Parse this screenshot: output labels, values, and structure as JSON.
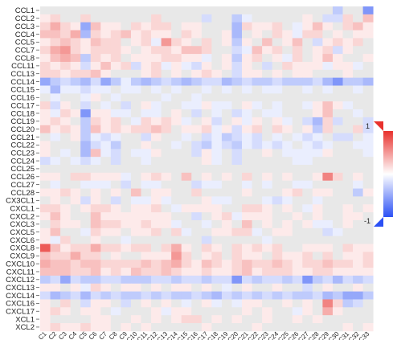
{
  "chart_data": {
    "type": "heatmap",
    "title": "",
    "xlabel": "",
    "ylabel": "",
    "rows": [
      "CCL1",
      "CCL2",
      "CCL3",
      "CCL4",
      "CCL5",
      "CCL7",
      "CCL8",
      "CCL11",
      "CCL13",
      "CCL14",
      "CCL15",
      "CCL16",
      "CCL17",
      "CCL18",
      "CCL19",
      "CCL20",
      "CCL21",
      "CCL22",
      "CCL23",
      "CCL24",
      "CCL25",
      "CCL26",
      "CCL27",
      "CCL28",
      "CX3CL1",
      "CXCL1",
      "CXCL2",
      "CXCL3",
      "CXCL5",
      "CXCL6",
      "CXCL8",
      "CXCL9",
      "CXCL10",
      "CXCL11",
      "CXCL12",
      "CXCL13",
      "CXCL14",
      "CXCL16",
      "CXCL17",
      "XCL1",
      "XCL2"
    ],
    "columns": [
      "C1",
      "C2",
      "C3",
      "C4",
      "C5",
      "C6",
      "C7",
      "C8",
      "C9",
      "C10",
      "C11",
      "C12",
      "C13",
      "C14",
      "C15",
      "C16",
      "C17",
      "C18",
      "C19",
      "C20",
      "C21",
      "C22",
      "C23",
      "C24",
      "C25",
      "C26",
      "C27",
      "C28",
      "C29",
      "C30",
      "C31",
      "C32",
      "C33"
    ],
    "values": [
      [
        0,
        0,
        0,
        0,
        0,
        0,
        0,
        0,
        0,
        0,
        0,
        0,
        0,
        0,
        0,
        0,
        0,
        0,
        0,
        0,
        0,
        0,
        0,
        0,
        0,
        0,
        0,
        0,
        0,
        -0.3,
        0,
        0,
        -0.6
      ],
      [
        0.1,
        0.2,
        0,
        0,
        0.2,
        0,
        0,
        0,
        0,
        0,
        0,
        0.2,
        0,
        0,
        0,
        0,
        -0.2,
        0,
        0,
        -0.3,
        -0.1,
        0,
        0,
        0,
        0,
        0,
        0.1,
        0,
        -0.2,
        -0.2,
        0.2,
        0,
        0.3
      ],
      [
        0.2,
        0.4,
        0.2,
        0.1,
        -0.5,
        0.3,
        0.1,
        0.1,
        0,
        0.2,
        0.1,
        0.2,
        0.2,
        0,
        0.1,
        0.1,
        0,
        0,
        0,
        -0.4,
        0.2,
        0.1,
        0.1,
        0.2,
        0,
        -0.1,
        0.1,
        0.3,
        0.1,
        0,
        0.2,
        0.3,
        0.1
      ],
      [
        0.3,
        0.3,
        0.2,
        0.4,
        -0.4,
        0.2,
        0.1,
        0.2,
        0.3,
        0.1,
        0.2,
        0.1,
        0.1,
        0,
        0.2,
        0.1,
        0,
        0,
        0.1,
        -0.4,
        0,
        0.1,
        0,
        0.2,
        0.1,
        -0.1,
        0.2,
        0.2,
        0,
        0.1,
        0,
        0.1,
        0.1
      ],
      [
        0.1,
        0.2,
        0.3,
        0.2,
        0.1,
        0.3,
        0.2,
        0.2,
        0,
        0.1,
        0.2,
        -0.1,
        0.5,
        0.2,
        0.1,
        0,
        0.2,
        0,
        0.1,
        -0.3,
        0.1,
        0,
        0.3,
        0,
        0.1,
        0.3,
        0,
        -0.2,
        0.1,
        0.2,
        0.1,
        0.2,
        0
      ],
      [
        0.2,
        0.4,
        0.5,
        0.2,
        0.1,
        0.2,
        0.2,
        0.2,
        0.1,
        0,
        0.1,
        0.2,
        0.2,
        0.1,
        0.3,
        0.3,
        0.2,
        0,
        0,
        -0.2,
        -0.1,
        0.3,
        0.1,
        0.2,
        0,
        0.2,
        0,
        0.1,
        0.2,
        -0.2,
        0.1,
        0,
        0
      ],
      [
        0.1,
        0.3,
        0.4,
        0.3,
        -0.3,
        0.2,
        0.1,
        0.2,
        0,
        0.1,
        0.1,
        0.1,
        0.2,
        0.2,
        0.1,
        0.1,
        -0.1,
        0,
        0.1,
        -0.3,
        0.1,
        0.2,
        0,
        0.1,
        -0.1,
        0.2,
        0,
        0.1,
        0.3,
        0.1,
        0,
        0,
        0.1
      ],
      [
        0.2,
        0.1,
        0.2,
        0.1,
        -0.2,
        0.1,
        0.3,
        0.1,
        0.2,
        -0.2,
        0.1,
        0.2,
        -0.1,
        0.1,
        -0.1,
        -0.2,
        0.1,
        0,
        0.1,
        -0.2,
        0.1,
        0,
        -0.2,
        0,
        0.2,
        0.1,
        0.1,
        0.1,
        -0.1,
        0.1,
        0.1,
        -0.1,
        0
      ],
      [
        0.2,
        0.2,
        0.1,
        0.2,
        0.2,
        0.3,
        0.1,
        0,
        0,
        0,
        0.1,
        0.2,
        0,
        0.1,
        0,
        0.1,
        0.2,
        0.1,
        0,
        -0.2,
        0.1,
        0.1,
        0,
        0.1,
        0,
        0.1,
        0.1,
        0,
        0,
        0,
        0.1,
        0,
        0
      ],
      [
        -0.5,
        -0.3,
        -0.2,
        -0.3,
        -0.4,
        -0.2,
        -0.5,
        -0.3,
        -0.1,
        -0.3,
        -0.4,
        -0.3,
        -0.2,
        -0.3,
        -0.4,
        -0.3,
        -0.2,
        -0.2,
        -0.4,
        -0.3,
        -0.2,
        -0.3,
        -0.3,
        -0.2,
        -0.3,
        -0.3,
        -0.3,
        -0.2,
        -0.4,
        -0.6,
        -0.3,
        -0.3,
        -0.4
      ],
      [
        -0.1,
        -0.4,
        -0.1,
        -0.1,
        -0.2,
        -0.1,
        -0.1,
        0,
        -0.1,
        -0.1,
        0,
        -0.1,
        0,
        -0.1,
        0,
        0,
        -0.1,
        0,
        -0.1,
        0,
        -0.1,
        0,
        -0.1,
        -0.1,
        0,
        0,
        -0.1,
        0,
        -0.1,
        0,
        0,
        -0.1,
        0
      ],
      [
        0,
        -0.1,
        0,
        0,
        -0.1,
        0.1,
        0,
        -0.1,
        0,
        0,
        0,
        0,
        -0.1,
        0,
        0,
        -0.1,
        0,
        0,
        0,
        0,
        0,
        0,
        0,
        0,
        0,
        0,
        0,
        0,
        0,
        0,
        0,
        0,
        0
      ],
      [
        0.2,
        -0.2,
        0.1,
        0,
        -0.2,
        0,
        -0.1,
        0,
        -0.2,
        0,
        0.1,
        -0.1,
        0,
        0,
        -0.1,
        -0.1,
        0.1,
        -0.1,
        -0.1,
        0,
        0.1,
        -0.1,
        0,
        -0.1,
        0,
        0,
        -0.1,
        0.1,
        0.3,
        0.1,
        -0.1,
        0,
        0
      ],
      [
        0.1,
        -0.1,
        0.2,
        0.1,
        -0.6,
        0.1,
        0.1,
        -0.1,
        -0.1,
        0,
        -0.1,
        -0.1,
        0,
        0.1,
        0,
        -0.2,
        0,
        -0.1,
        0,
        -0.2,
        -0.1,
        0,
        -0.1,
        -0.1,
        0,
        0,
        0,
        0.1,
        0.3,
        0,
        0,
        -0.1,
        0
      ],
      [
        0.1,
        0.2,
        0.1,
        0,
        -0.3,
        0.2,
        0.1,
        0.2,
        0,
        -0.1,
        0.2,
        0.1,
        0.2,
        0.1,
        -0.1,
        0,
        0.1,
        -0.2,
        0,
        0.1,
        -0.1,
        0.1,
        0,
        0.1,
        -0.1,
        0,
        -0.2,
        -0.4,
        0.2,
        -0.2,
        0,
        0,
        -0.2
      ],
      [
        0.3,
        0.1,
        0.2,
        0.1,
        -0.3,
        0.3,
        0.1,
        0.2,
        0.1,
        0.2,
        0.2,
        0.3,
        0.2,
        0,
        0.1,
        0.1,
        0.2,
        -0.1,
        0.1,
        -0.2,
        0.1,
        0.2,
        0,
        0.2,
        0.1,
        0,
        0.1,
        -0.3,
        0.2,
        0,
        0,
        0.2,
        -0.2
      ],
      [
        0,
        -0.1,
        0,
        0.1,
        -0.3,
        -0.1,
        -0.2,
        -0.1,
        0,
        0,
        -0.2,
        0.1,
        0,
        0,
        -0.1,
        0,
        -0.2,
        -0.1,
        -0.3,
        -0.2,
        -0.1,
        -0.2,
        0,
        -0.1,
        0,
        -0.1,
        -0.2,
        -0.1,
        0,
        -0.2,
        -0.2,
        0,
        -0.1
      ],
      [
        0.1,
        0,
        0,
        0,
        -0.4,
        -0.2,
        -0.1,
        -0.3,
        0,
        0,
        0.1,
        0,
        0,
        -0.1,
        0,
        -0.2,
        -0.3,
        -0.1,
        -0.2,
        -0.3,
        -0.1,
        -0.2,
        -0.1,
        -0.2,
        -0.1,
        0,
        -0.1,
        -0.2,
        -0.1,
        0,
        0,
        -0.1,
        -0.1
      ],
      [
        0.1,
        0,
        -0.1,
        0,
        -0.4,
        0.3,
        -0.1,
        -0.2,
        0,
        -0.1,
        -0.1,
        0.1,
        0,
        0,
        0,
        -0.2,
        0.1,
        -0.1,
        0,
        -0.2,
        0,
        0,
        0.1,
        0,
        -0.1,
        -0.1,
        -0.1,
        -0.1,
        0.1,
        0,
        0,
        0,
        -0.1
      ],
      [
        -0.2,
        -0.1,
        0,
        -0.1,
        -0.2,
        -0.1,
        0,
        -0.2,
        0,
        0,
        -0.1,
        0,
        0,
        0,
        0,
        0,
        0.1,
        -0.1,
        0,
        -0.2,
        0,
        0,
        0,
        0,
        0,
        -0.1,
        -0.1,
        0,
        0,
        0,
        0,
        0,
        0
      ],
      [
        0,
        0,
        0,
        0,
        0,
        0,
        0,
        0,
        0,
        0,
        0,
        0,
        0,
        0,
        0,
        0,
        0,
        0,
        0,
        0,
        0,
        0,
        0,
        0,
        0,
        0,
        0,
        0,
        0,
        0,
        0,
        0,
        0
      ],
      [
        0.1,
        0.1,
        0,
        0.2,
        0.2,
        0.1,
        0.1,
        0.1,
        -0.1,
        0,
        0.1,
        0.2,
        0.1,
        0,
        0.3,
        0,
        0.1,
        0,
        0.1,
        0,
        0.2,
        0,
        0.1,
        0,
        0.1,
        0,
        0,
        0.1,
        0.6,
        0.2,
        0,
        0.1,
        0
      ],
      [
        0,
        -0.1,
        0,
        0,
        -0.1,
        -0.1,
        -0.1,
        0,
        -0.2,
        0,
        -0.1,
        -0.1,
        0,
        0,
        0,
        -0.2,
        -0.1,
        -0.1,
        0,
        0,
        -0.1,
        0,
        -0.1,
        0,
        0,
        -0.1,
        -0.1,
        0,
        0,
        0,
        0,
        -0.1,
        0
      ],
      [
        0.1,
        0.1,
        0.2,
        0.1,
        0,
        0.1,
        0,
        0.1,
        0,
        0.3,
        0,
        0.1,
        0.1,
        0,
        0,
        0.2,
        0,
        0,
        0,
        0,
        0.1,
        0,
        0,
        0,
        0.1,
        0.2,
        0,
        0.1,
        0.1,
        0,
        0,
        -0.3,
        0.1
      ],
      [
        0,
        0.1,
        0,
        0.1,
        -0.2,
        0.1,
        0,
        -0.2,
        0,
        -0.1,
        -0.1,
        0.1,
        -0.1,
        0,
        0,
        0,
        0.1,
        -0.1,
        -0.1,
        0,
        0,
        0,
        -0.1,
        -0.2,
        -0.1,
        0,
        0,
        -0.1,
        0,
        0,
        0,
        0,
        0
      ],
      [
        0.2,
        0.2,
        0.1,
        0,
        0.1,
        0.2,
        0.2,
        0.1,
        0,
        0.1,
        0.1,
        0.2,
        0,
        -0.1,
        0.1,
        0.1,
        0.1,
        0.1,
        0,
        0,
        0.2,
        0.2,
        0.1,
        0,
        0.1,
        0,
        -0.1,
        0.1,
        0,
        0,
        0.1,
        0,
        0.1
      ],
      [
        0.1,
        0.3,
        0.1,
        0,
        0,
        0.3,
        0.1,
        0.1,
        0.1,
        0.1,
        0.1,
        0.1,
        0.1,
        0,
        0,
        -0.2,
        0,
        0.1,
        0.2,
        -0.1,
        0.1,
        0.1,
        0.1,
        0,
        0,
        0.1,
        0,
        0.1,
        0,
        0,
        0.1,
        0.1,
        0
      ],
      [
        0,
        0.2,
        0.1,
        0.1,
        0,
        0.3,
        0.2,
        0.2,
        0.1,
        0.1,
        0.2,
        0.1,
        0.1,
        -0.1,
        0,
        0,
        -0.1,
        0,
        0.1,
        0,
        0.3,
        0,
        0.1,
        0,
        0.1,
        0,
        0.1,
        -0.1,
        -0.1,
        0,
        0.1,
        0,
        0
      ],
      [
        0.1,
        0.3,
        0,
        0,
        -0.1,
        0.2,
        0.1,
        0.1,
        0,
        0.1,
        0.1,
        0.2,
        0,
        0.2,
        -0.1,
        0,
        0,
        0.1,
        0.1,
        0.2,
        0.2,
        -0.1,
        0,
        0.1,
        0.1,
        0,
        0,
        0,
        -0.2,
        -0.1,
        0,
        0,
        0
      ],
      [
        0.1,
        -0.1,
        0.2,
        0,
        0,
        0.1,
        0,
        0,
        -0.1,
        0,
        0,
        0,
        0,
        0,
        0,
        0,
        -0.2,
        0,
        0,
        0,
        0,
        0,
        -0.1,
        0,
        0,
        0,
        0,
        0,
        0,
        0,
        0,
        0,
        0
      ],
      [
        0.8,
        0.3,
        0.1,
        0.2,
        0.2,
        0.4,
        0.2,
        0.2,
        0.1,
        0.2,
        0.2,
        0,
        0.2,
        0.4,
        0.1,
        0,
        0.2,
        0.1,
        0,
        0.2,
        0.1,
        0.2,
        0.1,
        0.2,
        0,
        0,
        0.1,
        0.1,
        0.1,
        0,
        0.2,
        0.1,
        0.1
      ],
      [
        0.3,
        0.2,
        0.2,
        0.4,
        0.2,
        0.2,
        0,
        0.1,
        0,
        0,
        0.1,
        0.1,
        0.1,
        0.5,
        0.2,
        0,
        0.1,
        0.2,
        0,
        0.2,
        0.1,
        0.1,
        0,
        0.2,
        0.1,
        0.1,
        0.2,
        0,
        0.2,
        0,
        0.1,
        0.1,
        0.2
      ],
      [
        0.4,
        0.3,
        0.3,
        0.2,
        0.3,
        0.3,
        0.2,
        0.2,
        0.2,
        0.2,
        0.3,
        0.2,
        0.3,
        0.4,
        0.2,
        0.1,
        0.3,
        0.2,
        0.1,
        0.2,
        0.3,
        0.2,
        0.2,
        0.3,
        0.2,
        0.1,
        0.2,
        0.2,
        0.3,
        0.2,
        0.2,
        0.1,
        0.2
      ],
      [
        0.3,
        0.3,
        0.3,
        0.2,
        0.2,
        0.3,
        0.1,
        0.2,
        0.1,
        0.3,
        0.2,
        0.2,
        0.3,
        0.2,
        0.1,
        0.1,
        0.2,
        0.1,
        0.1,
        0.2,
        0.3,
        0.1,
        0.2,
        0.2,
        0.2,
        0.1,
        0.1,
        0.2,
        0.2,
        0.1,
        0.1,
        0.1,
        0.1
      ],
      [
        -0.3,
        -0.2,
        -0.5,
        -0.2,
        -0.3,
        -0.3,
        -0.2,
        -0.2,
        -0.3,
        -0.3,
        -0.3,
        -0.2,
        -0.2,
        -0.3,
        -0.2,
        -0.2,
        -0.3,
        -0.2,
        -0.2,
        -0.6,
        -0.2,
        -0.3,
        -0.2,
        -0.2,
        -0.3,
        -0.2,
        -0.6,
        -0.3,
        -0.2,
        -0.4,
        -0.2,
        -0.3,
        -0.2
      ],
      [
        0.1,
        0.1,
        0,
        0.1,
        -0.1,
        0.2,
        0.1,
        0,
        0.1,
        0.1,
        0,
        0.1,
        0,
        0.1,
        0.1,
        0,
        0.1,
        0,
        -0.1,
        0,
        0.1,
        0,
        0,
        0.1,
        0,
        0,
        -0.2,
        0,
        0.1,
        0,
        0,
        0.1,
        0
      ],
      [
        -0.2,
        -0.4,
        -0.3,
        -0.2,
        -0.4,
        -0.2,
        -0.3,
        -0.2,
        -0.3,
        -0.3,
        -0.2,
        -0.3,
        -0.2,
        -0.3,
        -0.3,
        -0.2,
        -0.3,
        -0.4,
        -0.2,
        -0.3,
        -0.2,
        -0.3,
        -0.2,
        -0.3,
        -0.2,
        -0.3,
        -0.3,
        -0.2,
        -0.4,
        -0.3,
        -0.5,
        -0.5,
        -0.3
      ],
      [
        0.1,
        0,
        0.2,
        0,
        -0.2,
        0.1,
        0.1,
        0,
        -0.2,
        0,
        0.1,
        0,
        0.1,
        0,
        -0.1,
        0,
        0.1,
        -0.1,
        0,
        -0.1,
        0.1,
        0.1,
        0,
        0,
        0.1,
        0,
        0.1,
        0,
        0.6,
        0.2,
        -0.3,
        -0.2,
        0
      ],
      [
        0.1,
        0.2,
        0.1,
        0,
        0.1,
        0.1,
        0,
        -0.1,
        0,
        0,
        0,
        0.1,
        -0.1,
        0.1,
        0.1,
        0,
        0,
        0,
        0,
        0,
        0.1,
        0,
        0.1,
        0,
        0,
        -0.1,
        0.1,
        0,
        0.4,
        0.1,
        0,
        0,
        0
      ],
      [
        0.1,
        0,
        0,
        0,
        0,
        0.1,
        0.1,
        0,
        0,
        0.1,
        0,
        0.1,
        0,
        0.1,
        0.2,
        0.2,
        0,
        0.1,
        0,
        0.1,
        0,
        0,
        0.1,
        0,
        0,
        0.1,
        0,
        0.1,
        0,
        0,
        0,
        0,
        0
      ],
      [
        0.1,
        0.2,
        0.1,
        0.1,
        0.2,
        0.1,
        0.1,
        0,
        0.1,
        0,
        0.1,
        0,
        0,
        0,
        0,
        0,
        0.1,
        0,
        0,
        0,
        0,
        0.1,
        0,
        0,
        0,
        0,
        0,
        0,
        0,
        0,
        0.1,
        0,
        0.1
      ]
    ],
    "color_scale": {
      "min": -1,
      "max": 1,
      "low_color": "#2b50f5",
      "mid_color": "#ffffff",
      "high_color": "#e8312d",
      "tick_labels": [
        "1",
        "-1"
      ]
    },
    "grid": false,
    "legend": "right"
  }
}
